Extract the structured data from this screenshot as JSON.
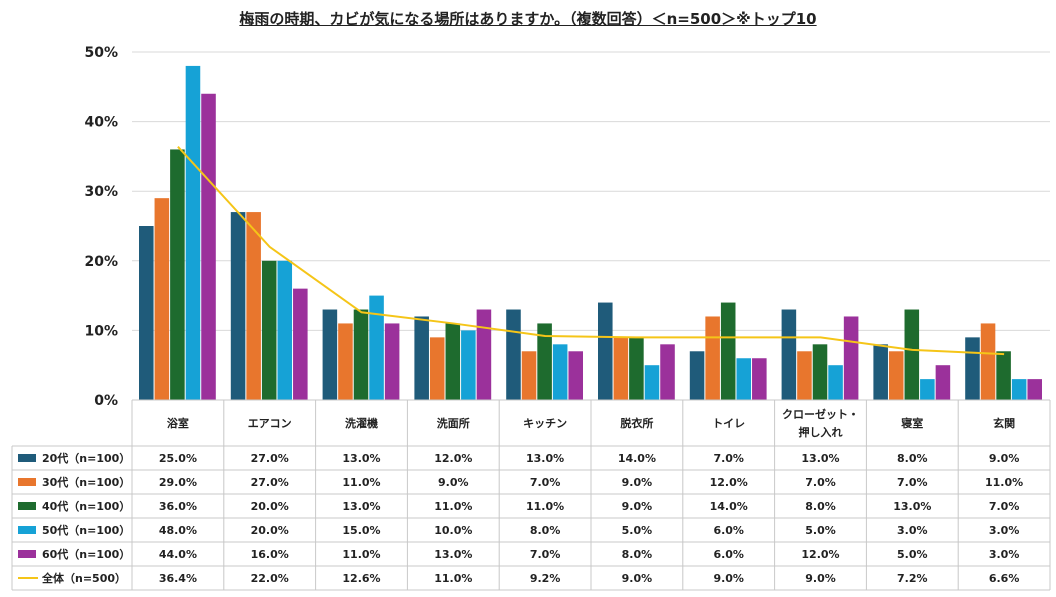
{
  "chart_data": {
    "type": "bar",
    "title": "梅雨の時期、カビが気になる場所はありますか。（複数回答）＜n=500＞※トップ10",
    "categories": [
      "浴室",
      "エアコン",
      "洗濯機",
      "洗面所",
      "キッチン",
      "脱衣所",
      "トイレ",
      "クローゼット・押し入れ",
      "寝室",
      "玄関"
    ],
    "category_lines": [
      [
        "浴室"
      ],
      [
        "エアコン"
      ],
      [
        "洗濯機"
      ],
      [
        "洗面所"
      ],
      [
        "キッチン"
      ],
      [
        "脱衣所"
      ],
      [
        "トイレ"
      ],
      [
        "クローゼット・",
        "押し入れ"
      ],
      [
        "寝室"
      ],
      [
        "玄関"
      ]
    ],
    "ylim": [
      0,
      50
    ],
    "yticks": [
      0,
      10,
      20,
      30,
      40,
      50
    ],
    "ytick_labels": [
      "0%",
      "10%",
      "20%",
      "30%",
      "40%",
      "50%"
    ],
    "grid": true,
    "legend": "data-table",
    "series": [
      {
        "name": "20代（n=100）",
        "kind": "bar",
        "color": "#1f5b7a",
        "values": [
          25,
          27,
          13,
          12,
          13,
          14,
          7,
          13,
          8,
          9
        ],
        "labels": [
          "25.0%",
          "27.0%",
          "13.0%",
          "12.0%",
          "13.0%",
          "14.0%",
          "7.0%",
          "13.0%",
          "8.0%",
          "9.0%"
        ]
      },
      {
        "name": "30代（n=100）",
        "kind": "bar",
        "color": "#e8762d",
        "values": [
          29,
          27,
          11,
          9,
          7,
          9,
          12,
          7,
          7,
          11
        ],
        "labels": [
          "29.0%",
          "27.0%",
          "11.0%",
          "9.0%",
          "7.0%",
          "9.0%",
          "12.0%",
          "7.0%",
          "7.0%",
          "11.0%"
        ]
      },
      {
        "name": "40代（n=100）",
        "kind": "bar",
        "color": "#1e6b2e",
        "values": [
          36,
          20,
          13,
          11,
          11,
          9,
          14,
          8,
          13,
          7
        ],
        "labels": [
          "36.0%",
          "20.0%",
          "13.0%",
          "11.0%",
          "11.0%",
          "9.0%",
          "14.0%",
          "8.0%",
          "13.0%",
          "7.0%"
        ]
      },
      {
        "name": "50代（n=100）",
        "kind": "bar",
        "color": "#16a2d6",
        "values": [
          48,
          20,
          15,
          10,
          8,
          5,
          6,
          5,
          3,
          3
        ],
        "labels": [
          "48.0%",
          "20.0%",
          "15.0%",
          "10.0%",
          "8.0%",
          "5.0%",
          "6.0%",
          "5.0%",
          "3.0%",
          "3.0%"
        ]
      },
      {
        "name": "60代（n=100）",
        "kind": "bar",
        "color": "#9b319b",
        "values": [
          44,
          16,
          11,
          13,
          7,
          8,
          6,
          12,
          5,
          3
        ],
        "labels": [
          "44.0%",
          "16.0%",
          "11.0%",
          "13.0%",
          "7.0%",
          "8.0%",
          "6.0%",
          "12.0%",
          "5.0%",
          "3.0%"
        ]
      },
      {
        "name": "全体（n=500）",
        "kind": "line",
        "color": "#f5c518",
        "values": [
          36.4,
          22.0,
          12.6,
          11.0,
          9.2,
          9.0,
          9.0,
          9.0,
          7.2,
          6.6
        ],
        "labels": [
          "36.4%",
          "22.0%",
          "12.6%",
          "11.0%",
          "9.2%",
          "9.0%",
          "9.0%",
          "9.0%",
          "7.2%",
          "6.6%"
        ]
      }
    ]
  }
}
